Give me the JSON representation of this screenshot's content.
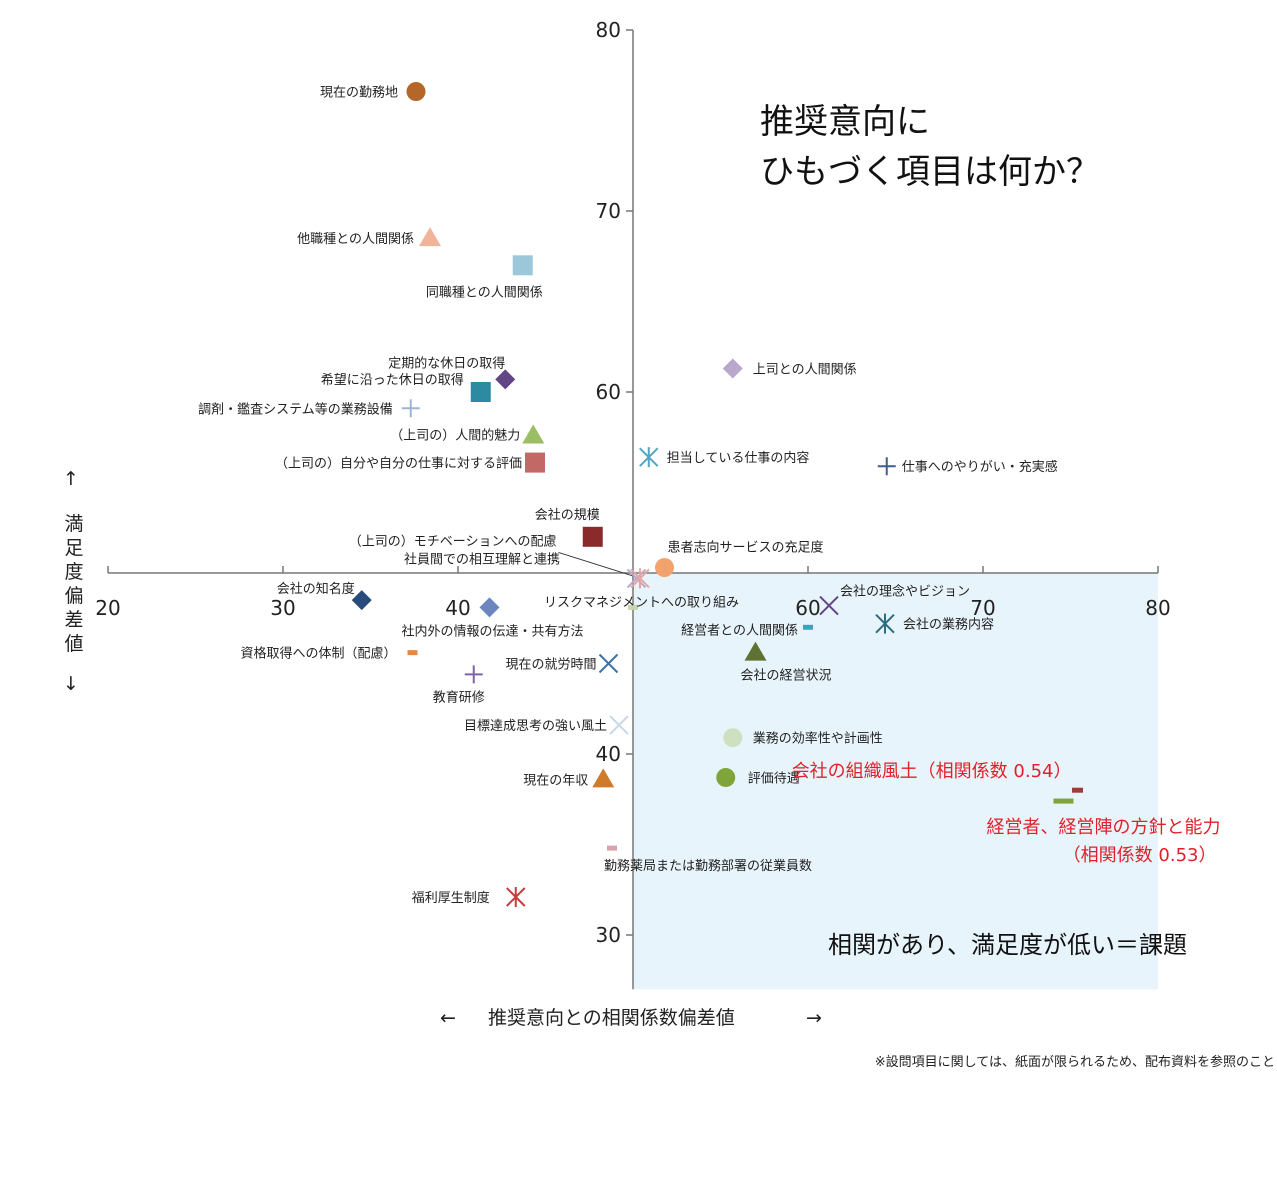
{
  "chart_data": {
    "type": "scatter",
    "xlabel": "推奨意向との相関係数偏差値",
    "xlabel_arrows": [
      "←",
      "→"
    ],
    "ylabel": "満足度偏差値",
    "ylabel_arrows": [
      "↑",
      "↓"
    ],
    "xlim": [
      20,
      80
    ],
    "ylim": [
      27,
      80
    ],
    "x_ticks": [
      "20",
      "30",
      "40",
      "60",
      "70",
      "80"
    ],
    "y_ticks": [
      "80",
      "70",
      "60",
      "40",
      "30"
    ],
    "axis_cross": {
      "x": 50,
      "y": 50
    },
    "highlight_region": {
      "x": [
        50,
        80
      ],
      "y": [
        27,
        50
      ],
      "color": "#e8f4fb"
    },
    "title_lines": [
      "推奨意向に",
      "ひもづく項目は何か？"
    ],
    "quadrant_note": "相関があり、満足度が低い＝課題",
    "footnote": "※設問項目に関しては、紙面が限られるため、配布資料を参照のこと",
    "points": [
      {
        "label": "現在の勤務地",
        "x": 37.6,
        "y": 76.6,
        "marker": "circle",
        "color": "#b5672a"
      },
      {
        "label": "他職種との人間関係",
        "x": 38.4,
        "y": 68.5,
        "marker": "triangle",
        "color": "#f0b49a"
      },
      {
        "label": "同職種との人間関係",
        "x": 43.7,
        "y": 67.0,
        "marker": "square",
        "color": "#9cc7da"
      },
      {
        "label": "上司との人間関係",
        "x": 55.7,
        "y": 61.3,
        "marker": "diamond",
        "color": "#b9a8cc"
      },
      {
        "label": "定期的な休日の取得",
        "x": 42.7,
        "y": 60.7,
        "marker": "diamond",
        "color": "#614585"
      },
      {
        "label": "希望に沿った休日の取得",
        "x": 41.3,
        "y": 60.0,
        "marker": "square",
        "color": "#2c8ba1"
      },
      {
        "label": "調剤・鑑査システム等の業務設備",
        "x": 37.3,
        "y": 59.1,
        "marker": "plus",
        "color": "#9fb2d8"
      },
      {
        "label": "（上司の）人間的魅力",
        "x": 44.3,
        "y": 57.6,
        "marker": "triangle",
        "color": "#9bbd63"
      },
      {
        "label": "担当している仕事の内容",
        "x": 50.9,
        "y": 56.4,
        "marker": "asterisk",
        "color": "#53a6c2"
      },
      {
        "label": "（上司の）自分や自分の仕事に対する評価",
        "x": 44.4,
        "y": 56.1,
        "marker": "square",
        "color": "#c26966"
      },
      {
        "label": "仕事へのやりがい・充実感",
        "x": 64.5,
        "y": 55.9,
        "marker": "plus",
        "color": "#3f5f8d"
      },
      {
        "label": "会社の規模",
        "x": 47.7,
        "y": 52.0,
        "marker": "square",
        "color": "#8b2a2a"
      },
      {
        "label": "患者志向サービスの充足度",
        "x": 51.8,
        "y": 50.3,
        "marker": "circle",
        "color": "#f2a26c"
      },
      {
        "label": "（上司の）モチベーションへの配慮",
        "x": 50.2,
        "y": 49.7,
        "marker": "x",
        "color": "#b9a8cc"
      },
      {
        "label": "社員間での相互理解と連携",
        "x": 50.4,
        "y": 49.7,
        "marker": "asterisk",
        "color": "#e4a5a2"
      },
      {
        "label": "リスクマネジメントへの取り組み",
        "x": 50.0,
        "y": 48.1,
        "marker": "dash",
        "color": "#c6d8a7"
      },
      {
        "label": "会社の知名度",
        "x": 34.5,
        "y": 48.5,
        "marker": "diamond",
        "color": "#2a4c7d"
      },
      {
        "label": "社内外の情報の伝達・共有方法",
        "x": 41.8,
        "y": 48.1,
        "marker": "diamond",
        "color": "#6c86c0"
      },
      {
        "label": "会社の理念やビジョン",
        "x": 61.2,
        "y": 48.2,
        "marker": "x",
        "color": "#614585"
      },
      {
        "label": "経営者との人間関係",
        "x": 60.0,
        "y": 47.0,
        "marker": "dash",
        "color": "#3fa1bb"
      },
      {
        "label": "会社の業務内容",
        "x": 64.4,
        "y": 47.2,
        "marker": "asterisk",
        "color": "#2a6f7d"
      },
      {
        "label": "資格取得への体制（配慮）",
        "x": 37.4,
        "y": 45.6,
        "marker": "dash",
        "color": "#e0894b"
      },
      {
        "label": "会社の経営状況",
        "x": 57.0,
        "y": 45.6,
        "marker": "triangle",
        "color": "#5f7234"
      },
      {
        "label": "現在の就労時間",
        "x": 48.6,
        "y": 45.0,
        "marker": "x",
        "color": "#3c74a8"
      },
      {
        "label": "教育研修",
        "x": 40.9,
        "y": 44.4,
        "marker": "plus",
        "color": "#7e63a8"
      },
      {
        "label": "目標達成思考の強い風土",
        "x": 49.2,
        "y": 41.6,
        "marker": "x",
        "color": "#c8d7e8"
      },
      {
        "label": "業務の効率性や計画性",
        "x": 55.7,
        "y": 40.9,
        "marker": "circle",
        "color": "#cfe0c0"
      },
      {
        "label": "評価待遇",
        "x": 55.3,
        "y": 38.7,
        "marker": "circle",
        "color": "#7fa43a"
      },
      {
        "label": "現在の年収",
        "x": 48.3,
        "y": 38.6,
        "marker": "triangle",
        "color": "#d07a2c"
      },
      {
        "label": "会社の組織風土（相関係数 0.54）",
        "x": 75.4,
        "y": 38.0,
        "marker": "dash",
        "color": "#a33a3a",
        "highlight": true
      },
      {
        "label": "経営者、経営陣の方針と能力",
        "label2": "（相関係数 0.53）",
        "x": 74.6,
        "y": 37.4,
        "marker": "dash",
        "color": "#7fa43a",
        "highlight": true
      },
      {
        "label": "勤務薬局または勤務部署の従業員数",
        "x": 48.8,
        "y": 34.8,
        "marker": "dash",
        "color": "#d9a3ad"
      },
      {
        "label": "福利厚生制度",
        "x": 43.3,
        "y": 32.1,
        "marker": "asterisk",
        "color": "#c73b3b"
      }
    ]
  }
}
